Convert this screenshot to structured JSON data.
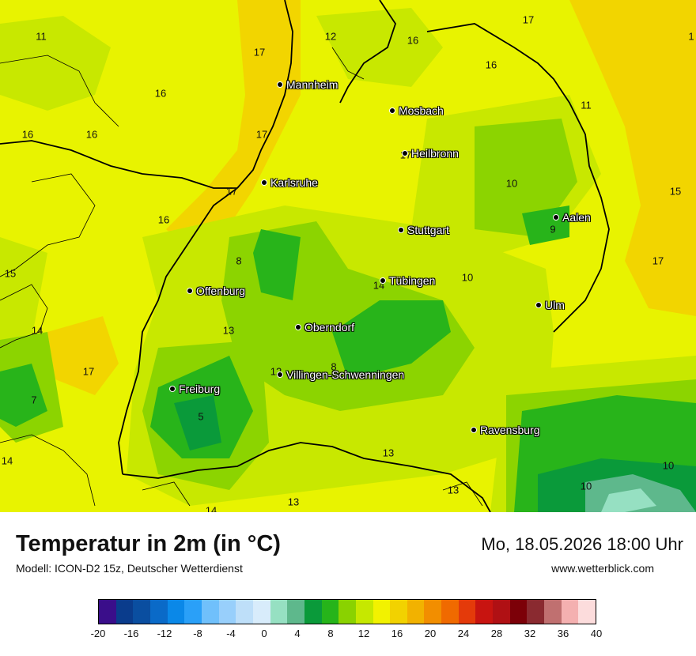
{
  "map": {
    "cities": [
      {
        "name": "Mannheim"
      },
      {
        "name": "Mosbach"
      },
      {
        "name": "Heilbronn"
      },
      {
        "name": "Karlsruhe"
      },
      {
        "name": "Aalen"
      },
      {
        "name": "Stuttgart"
      },
      {
        "name": "Tübingen"
      },
      {
        "name": "Offenburg"
      },
      {
        "name": "Ulm"
      },
      {
        "name": "Oberndorf"
      },
      {
        "name": "Villingen-Schwenningen"
      },
      {
        "name": "Freiburg"
      },
      {
        "name": "Ravensburg"
      }
    ],
    "temperature_labels": [
      {
        "value": "11"
      },
      {
        "value": "12"
      },
      {
        "value": "16"
      },
      {
        "value": "17"
      },
      {
        "value": "1"
      },
      {
        "value": "17"
      },
      {
        "value": "16"
      },
      {
        "value": "16"
      },
      {
        "value": "11"
      },
      {
        "value": "16"
      },
      {
        "value": "16"
      },
      {
        "value": "17"
      },
      {
        "value": "17"
      },
      {
        "value": "10"
      },
      {
        "value": "17"
      },
      {
        "value": "15"
      },
      {
        "value": "16"
      },
      {
        "value": "9"
      },
      {
        "value": "8"
      },
      {
        "value": "15"
      },
      {
        "value": "17"
      },
      {
        "value": "10"
      },
      {
        "value": "14"
      },
      {
        "value": "14"
      },
      {
        "value": "13"
      },
      {
        "value": "12"
      },
      {
        "value": "8"
      },
      {
        "value": "17"
      },
      {
        "value": "7"
      },
      {
        "value": "5"
      },
      {
        "value": "13"
      },
      {
        "value": "14"
      },
      {
        "value": "13"
      },
      {
        "value": "10"
      },
      {
        "value": "10"
      },
      {
        "value": "13"
      },
      {
        "value": "14"
      }
    ]
  },
  "footer": {
    "title": "Temperatur in 2m (in °C)",
    "model": "Modell: ICON-D2 15z, Deutscher Wetterdienst",
    "datetime": "Mo, 18.05.2026 18:00 Uhr",
    "site": "www.wetterblick.com"
  },
  "legend": {
    "colors": [
      "#3a0e8a",
      "#0a3c8c",
      "#0a4ea0",
      "#0a6ac8",
      "#0a88e8",
      "#2aa0f8",
      "#70c0fb",
      "#98cffb",
      "#bedff9",
      "#d8ecfb",
      "#96e0c2",
      "#5eb88c",
      "#0a9a3a",
      "#26b41a",
      "#8ad200",
      "#c6e800",
      "#f2f200",
      "#f2d200",
      "#f2b200",
      "#f28e00",
      "#f06a00",
      "#e43a0a",
      "#c81410",
      "#b01014",
      "#7c0008",
      "#8a2a30",
      "#c07070",
      "#f4b0b0",
      "#fcdcdc"
    ],
    "ticks": [
      "-20",
      "-16",
      "-12",
      "-8",
      "-4",
      "0",
      "4",
      "8",
      "12",
      "16",
      "20",
      "24",
      "28",
      "32",
      "36",
      "40"
    ]
  }
}
